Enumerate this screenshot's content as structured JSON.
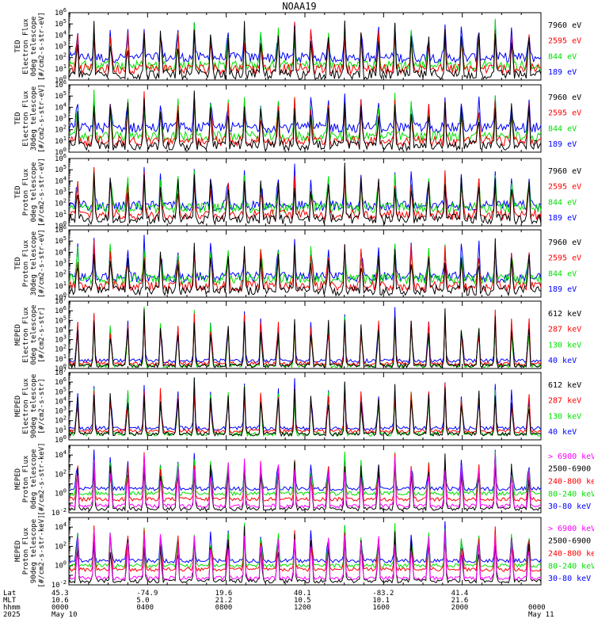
{
  "title": "NOAA19",
  "colors": {
    "black": "#000000",
    "red": "#ff0000",
    "green": "#00e000",
    "blue": "#0000ff",
    "magenta": "#ff00ff"
  },
  "x_range_hours": [
    0,
    24
  ],
  "ephemeris": {
    "row_labels": [
      "Lat",
      "MLT",
      "hhmm",
      "2025"
    ],
    "columns": [
      {
        "hour": 0,
        "lat": "45.3",
        "mlt": "10.6",
        "hhmm": "0000",
        "date": "May 10"
      },
      {
        "hour": 4,
        "lat": "-74.9",
        "mlt": "5.0",
        "hhmm": "0400",
        "date": ""
      },
      {
        "hour": 8,
        "lat": "19.6",
        "mlt": "21.2",
        "hhmm": "0800",
        "date": ""
      },
      {
        "hour": 12,
        "lat": "40.1",
        "mlt": "10.5",
        "hhmm": "1200",
        "date": ""
      },
      {
        "hour": 16,
        "lat": "-83.2",
        "mlt": "10.1",
        "hhmm": "1600",
        "date": ""
      },
      {
        "hour": 20,
        "lat": "41.4",
        "mlt": "21.6",
        "hhmm": "2000",
        "date": ""
      },
      {
        "hour": 24,
        "lat": "",
        "mlt": "",
        "hhmm": "0000",
        "date": "May 11"
      }
    ]
  },
  "chart_data": [
    {
      "type": "line",
      "log_y": true,
      "ylim_exp": [
        0,
        6
      ],
      "ylabel": [
        "TED",
        "Electron Flux",
        "0deg telescope",
        "[#/cm2-s-str-eV]"
      ],
      "channels": [
        {
          "label": "7960 eV",
          "color": "#000000",
          "base_exp": 0.5
        },
        {
          "label": "2595 eV",
          "color": "#ff0000",
          "base_exp": 1.0
        },
        {
          "label": "844 eV",
          "color": "#00e000",
          "base_exp": 1.3
        },
        {
          "label": "189 eV",
          "color": "#0000ff",
          "base_exp": 2.0
        }
      ]
    },
    {
      "type": "line",
      "log_y": true,
      "ylim_exp": [
        0,
        6
      ],
      "ylabel": [
        "TED",
        "Electron Flux",
        "30deg telescope",
        "[#/cm2-s-str-eV]"
      ],
      "channels": [
        {
          "label": "7960 eV",
          "color": "#000000",
          "base_exp": 0.6
        },
        {
          "label": "2595 eV",
          "color": "#ff0000",
          "base_exp": 1.0
        },
        {
          "label": "844 eV",
          "color": "#00e000",
          "base_exp": 1.4
        },
        {
          "label": "189 eV",
          "color": "#0000ff",
          "base_exp": 2.2
        }
      ]
    },
    {
      "type": "line",
      "log_y": true,
      "ylim_exp": [
        0,
        6
      ],
      "ylabel": [
        "TED",
        "Proton Flux",
        "0deg telescope",
        "[#/cm2-s-str-eV]"
      ],
      "channels": [
        {
          "label": "7960 eV",
          "color": "#000000",
          "base_exp": 0.6
        },
        {
          "label": "2595 eV",
          "color": "#ff0000",
          "base_exp": 1.0
        },
        {
          "label": "844 eV",
          "color": "#00e000",
          "base_exp": 1.6
        },
        {
          "label": "189 eV",
          "color": "#0000ff",
          "base_exp": 1.8
        }
      ]
    },
    {
      "type": "line",
      "log_y": true,
      "ylim_exp": [
        0,
        6
      ],
      "ylabel": [
        "TED",
        "Proton Flux",
        "30deg telescope",
        "[#/cm2-s-str-eV]"
      ],
      "channels": [
        {
          "label": "7960 eV",
          "color": "#000000",
          "base_exp": 0.6
        },
        {
          "label": "2595 eV",
          "color": "#ff0000",
          "base_exp": 1.0
        },
        {
          "label": "844 eV",
          "color": "#00e000",
          "base_exp": 1.6
        },
        {
          "label": "189 eV",
          "color": "#0000ff",
          "base_exp": 1.8
        }
      ]
    },
    {
      "type": "line",
      "log_y": true,
      "ylim_exp": [
        0,
        7
      ],
      "ylabel": [
        "MEPED",
        "Electron Flux",
        "0deg telescope",
        "[#/cm2-s-str]"
      ],
      "channels": [
        {
          "label": "612 keV",
          "color": "#000000",
          "base_exp": 0.3
        },
        {
          "label": "287 keV",
          "color": "#ff0000",
          "base_exp": 0.5
        },
        {
          "label": "130 keV",
          "color": "#00e000",
          "base_exp": 0.3
        },
        {
          "label": "40 keV",
          "color": "#0000ff",
          "base_exp": 0.8
        }
      ]
    },
    {
      "type": "line",
      "log_y": true,
      "ylim_exp": [
        0,
        7
      ],
      "ylabel": [
        "MEPED",
        "Electron Flux",
        "90deg telescope",
        "[#/cm2-s-str]"
      ],
      "channels": [
        {
          "label": "612 keV",
          "color": "#000000",
          "base_exp": 0.6
        },
        {
          "label": "287 keV",
          "color": "#ff0000",
          "base_exp": 0.9
        },
        {
          "label": "130 keV",
          "color": "#00e000",
          "base_exp": 0.6
        },
        {
          "label": "40 keV",
          "color": "#0000ff",
          "base_exp": 1.2
        }
      ]
    },
    {
      "type": "line",
      "log_y": true,
      "ylim_exp": [
        -2,
        5
      ],
      "ylabel": [
        "MEPED",
        "Proton Flux",
        "0deg telescope",
        "[#/cm2-s-str-keV]"
      ],
      "channels": [
        {
          "label": "> 6900 keV",
          "color": "#ff00ff",
          "base_exp": -1.3
        },
        {
          "label": "2500-6900",
          "color": "#000000",
          "base_exp": -1.6
        },
        {
          "label": "240-800 keV",
          "color": "#ff0000",
          "base_exp": -0.6
        },
        {
          "label": "80-240 keV",
          "color": "#00e000",
          "base_exp": 0.0
        },
        {
          "label": "30-80 keV",
          "color": "#0000ff",
          "base_exp": 0.5
        }
      ]
    },
    {
      "type": "line",
      "log_y": true,
      "ylim_exp": [
        -2,
        5
      ],
      "ylabel": [
        "MEPED",
        "Proton Flux",
        "90deg telescope",
        "[#/cm2-s-str-keV]"
      ],
      "channels": [
        {
          "label": "> 6900 keV",
          "color": "#ff00ff",
          "base_exp": -1.3
        },
        {
          "label": "2500-6900",
          "color": "#000000",
          "base_exp": -1.6
        },
        {
          "label": "240-800 keV",
          "color": "#ff0000",
          "base_exp": -0.4
        },
        {
          "label": "80-240 keV",
          "color": "#00e000",
          "base_exp": 0.0
        },
        {
          "label": "30-80 keV",
          "color": "#0000ff",
          "base_exp": 0.5
        }
      ]
    }
  ]
}
